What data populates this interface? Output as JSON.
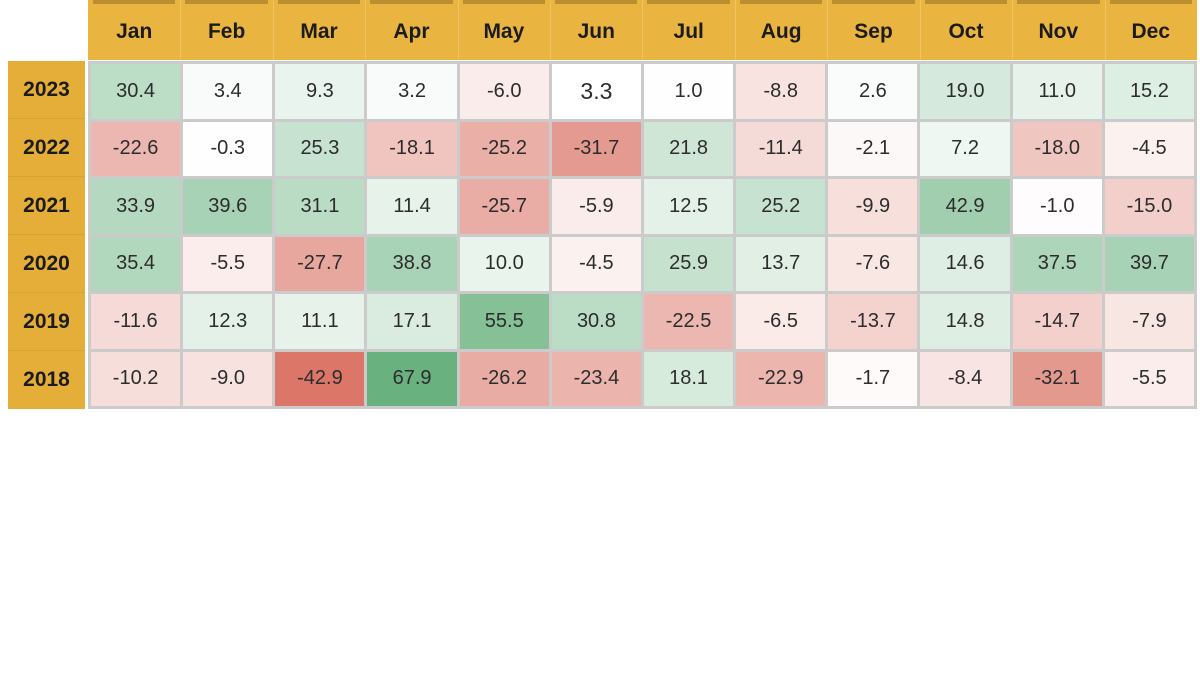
{
  "chart_data": {
    "type": "heatmap",
    "title": "",
    "columns": [
      "Jan",
      "Feb",
      "Mar",
      "Apr",
      "May",
      "Jun",
      "Jul",
      "Aug",
      "Sep",
      "Oct",
      "Nov",
      "Dec"
    ],
    "rows": [
      "2023",
      "2022",
      "2021",
      "2020",
      "2019",
      "2018"
    ],
    "values": [
      [
        30.4,
        3.4,
        9.3,
        3.2,
        -6.0,
        3.3,
        1.0,
        -8.8,
        2.6,
        19.0,
        11.0,
        15.2
      ],
      [
        -22.6,
        -0.3,
        25.3,
        -18.1,
        -25.2,
        -31.7,
        21.8,
        -11.4,
        -2.1,
        7.2,
        -18.0,
        -4.5
      ],
      [
        33.9,
        39.6,
        31.1,
        11.4,
        -25.7,
        -5.9,
        12.5,
        25.2,
        -9.9,
        42.9,
        -1.0,
        -15.0
      ],
      [
        35.4,
        -5.5,
        -27.7,
        38.8,
        10.0,
        -4.5,
        25.9,
        13.7,
        -7.6,
        14.6,
        37.5,
        39.7
      ],
      [
        -11.6,
        12.3,
        11.1,
        17.1,
        55.5,
        30.8,
        -22.5,
        -6.5,
        -13.7,
        14.8,
        -14.7,
        -7.9
      ],
      [
        -10.2,
        -9.0,
        -42.9,
        67.9,
        -26.2,
        -23.4,
        18.1,
        -22.9,
        -1.7,
        -8.4,
        -32.1,
        -5.5
      ]
    ],
    "value_decimals": 1,
    "highlight_cell": {
      "row": 0,
      "col": 5,
      "background": "#ffffff"
    },
    "colorscale": {
      "type": "diverging",
      "zero_color": "#ffffff",
      "positive_max_color": "#69b280",
      "positive_limit": 68,
      "negative_max_color": "#db7669",
      "negative_limit": 43
    },
    "legend_position": "none",
    "grid": false
  },
  "theme": {
    "header_bg": "#e9b440",
    "header_dash": "#bb8f2f",
    "year_bg": "#e4ae39",
    "grid_line": "#cbcbcb",
    "header_text": "#1c1c1c",
    "cell_text": "#2c2c2c",
    "page_bg": "#ffffff"
  }
}
